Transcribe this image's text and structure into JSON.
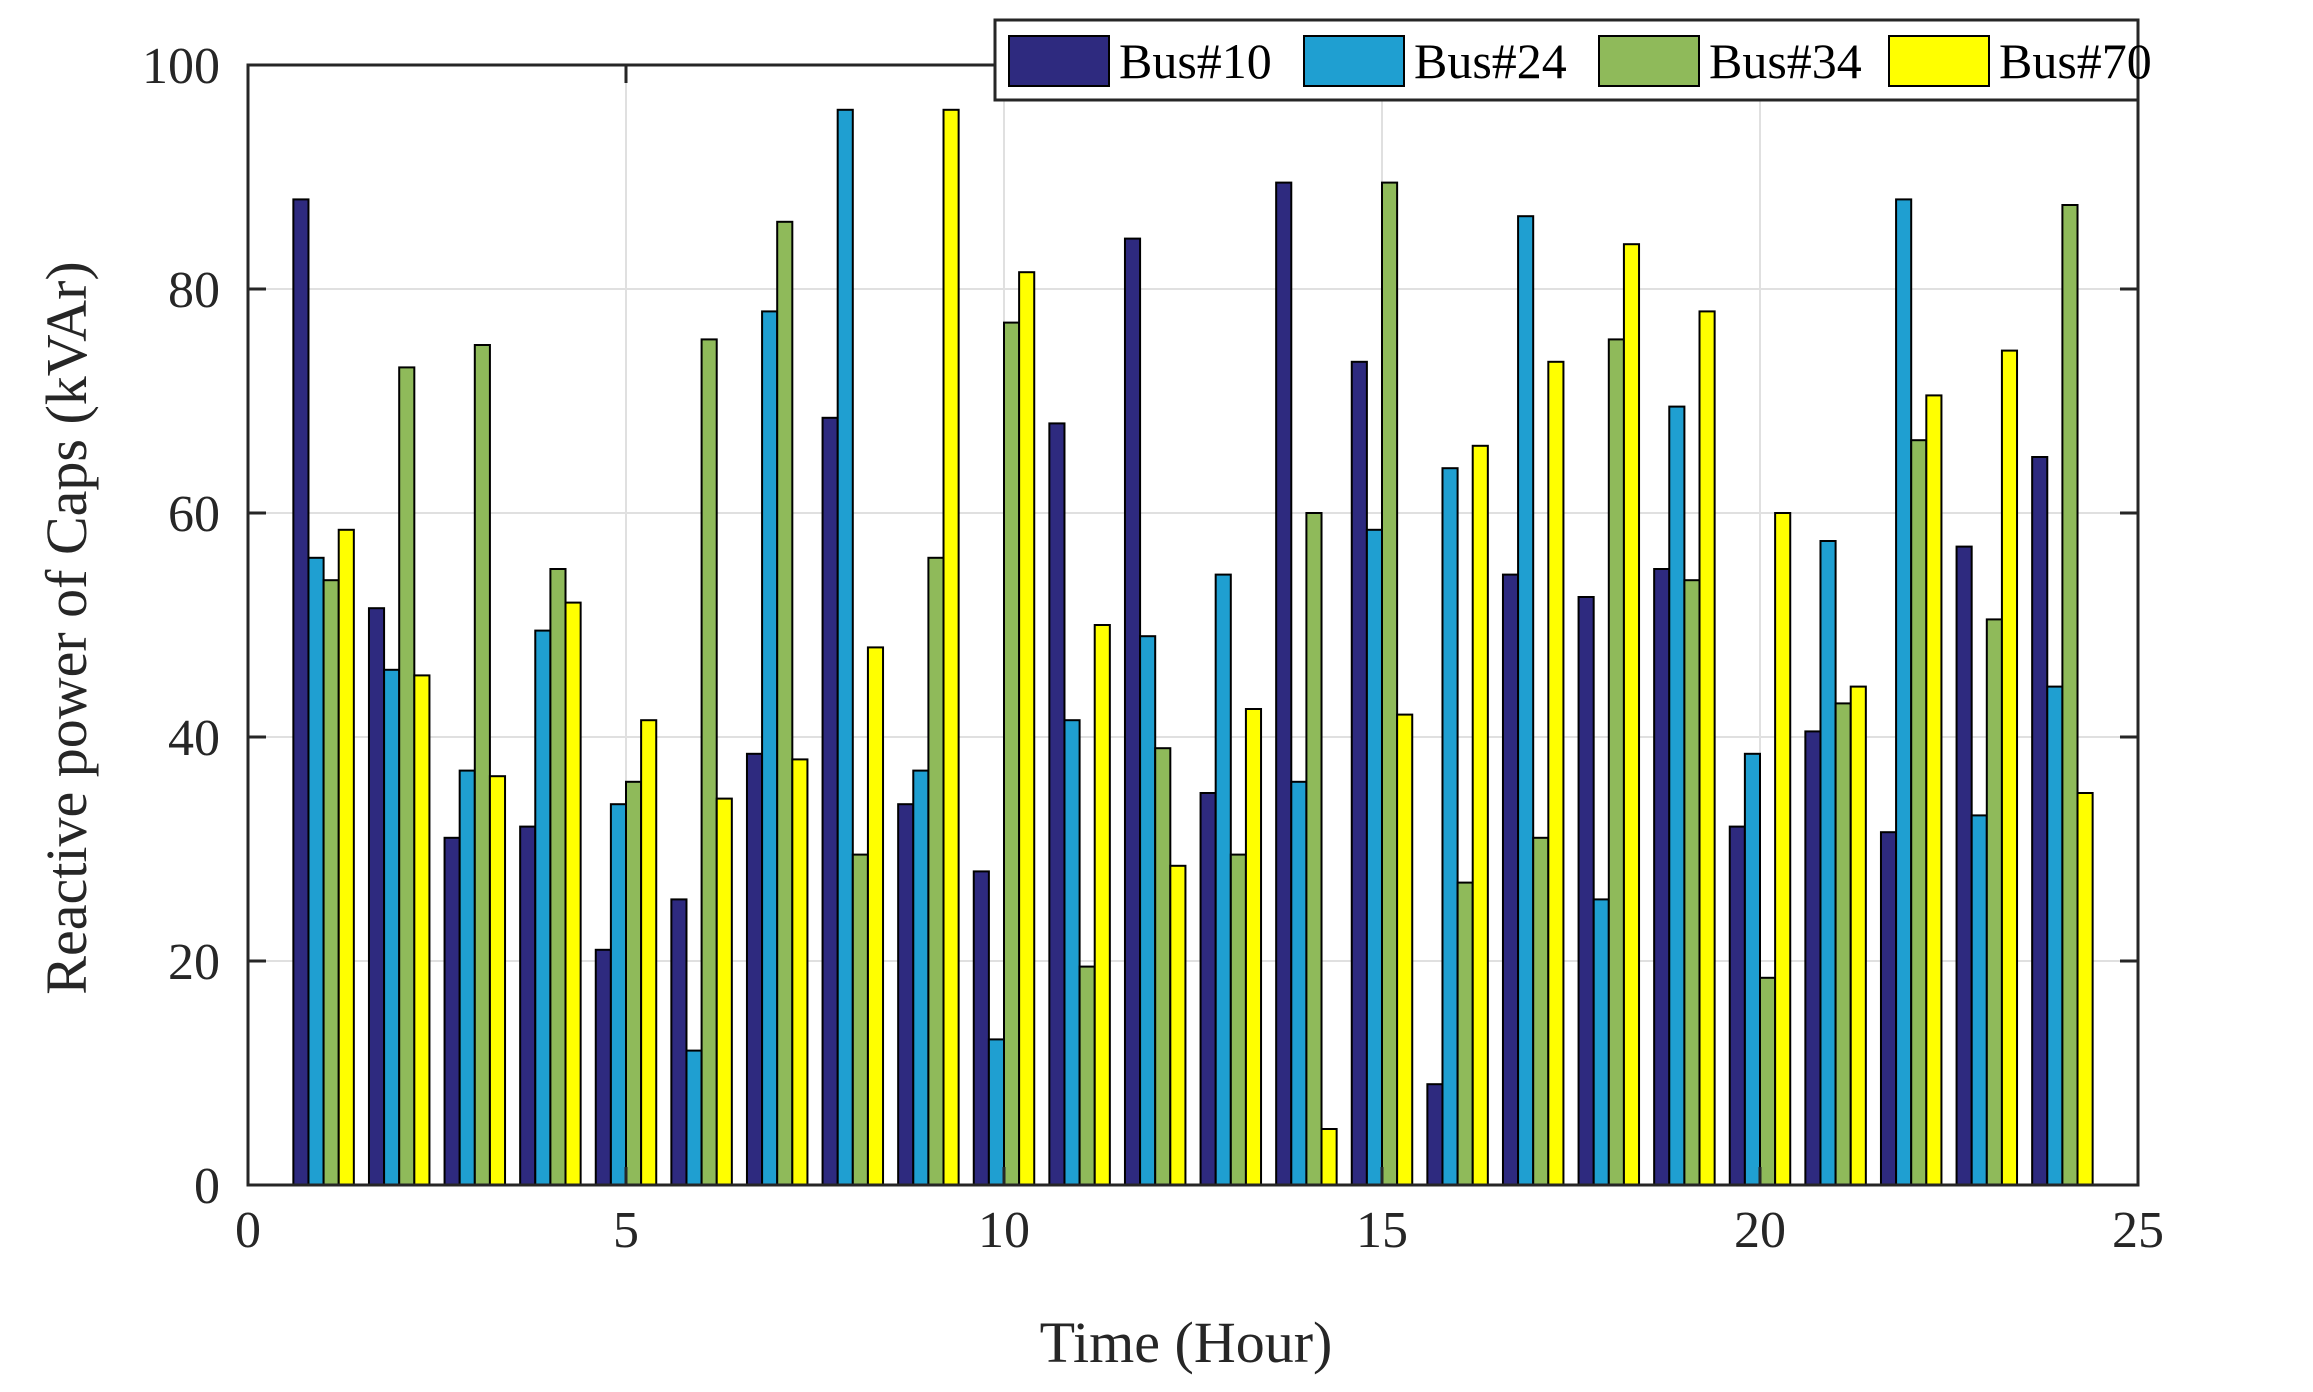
{
  "chart_data": {
    "type": "bar",
    "xlabel": "Time (Hour)",
    "ylabel": "Reactive power of Caps (kVAr)",
    "xlim": [
      0,
      25
    ],
    "ylim": [
      0,
      100
    ],
    "xticks": [
      "0",
      "5",
      "10",
      "15",
      "20",
      "25"
    ],
    "yticks": [
      "0",
      "20",
      "40",
      "60",
      "80",
      "100"
    ],
    "grid": true,
    "legend_position": "top-right",
    "x": [
      1,
      2,
      3,
      4,
      5,
      6,
      7,
      8,
      9,
      10,
      11,
      12,
      13,
      14,
      15,
      16,
      17,
      18,
      19,
      20,
      21,
      22,
      23,
      24
    ],
    "series": [
      {
        "name": "Bus#10",
        "color": "#2e2a7f",
        "values": [
          88,
          51.5,
          31,
          32,
          21,
          25.5,
          38.5,
          68.5,
          34,
          28,
          68,
          84.5,
          35,
          89.5,
          73.5,
          9,
          54.5,
          52.5,
          55,
          32,
          40.5,
          31.5,
          57,
          65
        ]
      },
      {
        "name": "Bus#24",
        "color": "#1f9fd1",
        "values": [
          56,
          46,
          37,
          49.5,
          34,
          12,
          78,
          96,
          37,
          13,
          41.5,
          49,
          54.5,
          36,
          58.5,
          64,
          86.5,
          25.5,
          69.5,
          38.5,
          57.5,
          88,
          33,
          44.5
        ]
      },
      {
        "name": "Bus#34",
        "color": "#8fba5a",
        "values": [
          54,
          73,
          75,
          55,
          36,
          75.5,
          86,
          29.5,
          56,
          77,
          19.5,
          39,
          29.5,
          60,
          89.5,
          27,
          31,
          75.5,
          54,
          18.5,
          43,
          66.5,
          50.5,
          87.5
        ]
      },
      {
        "name": "Bus#70",
        "color": "#ffff00",
        "values": [
          58.5,
          45.5,
          36.5,
          52,
          41.5,
          34.5,
          38,
          48,
          96,
          81.5,
          50,
          28.5,
          42.5,
          5,
          42,
          66,
          73.5,
          84,
          78,
          60,
          44.5,
          70.5,
          74.5,
          35
        ]
      }
    ]
  }
}
